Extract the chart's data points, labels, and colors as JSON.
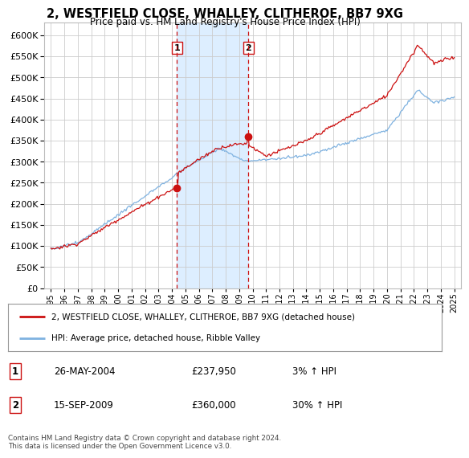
{
  "title": "2, WESTFIELD CLOSE, WHALLEY, CLITHEROE, BB7 9XG",
  "subtitle": "Price paid vs. HM Land Registry's House Price Index (HPI)",
  "legend_line1": "2, WESTFIELD CLOSE, WHALLEY, CLITHEROE, BB7 9XG (detached house)",
  "legend_line2": "HPI: Average price, detached house, Ribble Valley",
  "footnote": "Contains HM Land Registry data © Crown copyright and database right 2024.\nThis data is licensed under the Open Government Licence v3.0.",
  "transactions": [
    {
      "label": "1",
      "date": "26-MAY-2004",
      "price": 237950,
      "hpi_pct": "3% ↑ HPI",
      "x": 2004.38
    },
    {
      "label": "2",
      "date": "15-SEP-2009",
      "price": 360000,
      "hpi_pct": "30% ↑ HPI",
      "x": 2009.7
    }
  ],
  "ylim": [
    0,
    630000
  ],
  "yticks": [
    0,
    50000,
    100000,
    150000,
    200000,
    250000,
    300000,
    350000,
    400000,
    450000,
    500000,
    550000,
    600000
  ],
  "xlim": [
    1994.5,
    2025.5
  ],
  "hpi_color": "#7fb2e0",
  "price_color": "#cc1111",
  "shading_color": "#ddeeff",
  "vline_color": "#cc1111",
  "grid_color": "#cccccc",
  "background_color": "#ffffff"
}
